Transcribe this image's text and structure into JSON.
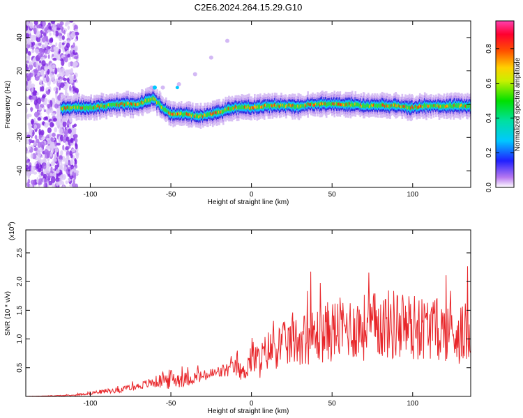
{
  "title": "C2E6.2024.264.15.29.G10",
  "chart_data": [
    {
      "type": "heatmap",
      "xlabel": "Height of straight line (km)",
      "ylabel": "Frequency (Hz)",
      "xlim": [
        -140,
        136
      ],
      "ylim": [
        -50,
        50
      ],
      "xticks": [
        -100,
        -50,
        0,
        50,
        100
      ],
      "yticks": [
        -40,
        -20,
        0,
        20,
        40
      ],
      "colorbar": {
        "label": "Normalized spectral amplitude",
        "range": [
          0,
          0.96
        ],
        "ticks": [
          "0.0",
          "0.2",
          "0.4",
          "0.6",
          "0.8"
        ]
      },
      "ridge": {
        "x": [
          -120,
          -110,
          -100,
          -90,
          -80,
          -70,
          -65,
          -60,
          -55,
          -50,
          -45,
          -40,
          -35,
          -30,
          -25,
          -20,
          -15,
          -10,
          -5,
          0,
          10,
          20,
          30,
          40,
          50,
          60,
          70,
          80,
          90,
          100,
          110,
          120,
          130,
          136
        ],
        "y": [
          -3,
          -2,
          -2,
          -1,
          0,
          0,
          2,
          3,
          -2,
          -6,
          -6,
          -6,
          -7,
          -7,
          -6,
          -5,
          -3,
          -2,
          -2,
          -2,
          -1,
          -1,
          -1,
          0,
          0,
          0,
          -1,
          -1,
          -1,
          -2,
          -1,
          -1,
          -1,
          -1
        ]
      },
      "arc": {
        "x": [
          -62,
          -55,
          -45,
          -35,
          -25,
          -15
        ],
        "y": [
          10,
          10,
          12,
          18,
          28,
          38
        ]
      }
    },
    {
      "type": "line",
      "xlabel": "Height of straight line (km)",
      "ylabel": "SNR (10 * v/v)",
      "y_multiplier": "(x10",
      "y_multiplier_exp": "4",
      "y_multiplier_close": ")",
      "xlim": [
        -140,
        136
      ],
      "ylim": [
        0,
        2.9
      ],
      "xticks": [
        -100,
        -50,
        0,
        50,
        100
      ],
      "yticks": [
        "0.5",
        "1.0",
        "1.5",
        "2.0",
        "2.5"
      ],
      "series": [
        {
          "color": "#e8262a",
          "envelope_x": [
            -140,
            -110,
            -100,
            -80,
            -70,
            -60,
            -50,
            -40,
            -30,
            -20,
            -10,
            -5,
            0,
            5,
            10,
            20,
            30,
            40,
            50,
            60,
            70,
            80,
            90,
            100,
            110,
            120,
            130,
            136
          ],
          "envelope_y": [
            0.0,
            0.02,
            0.06,
            0.12,
            0.18,
            0.25,
            0.3,
            0.3,
            0.35,
            0.42,
            0.5,
            0.4,
            0.7,
            0.6,
            0.8,
            0.9,
            1.0,
            1.05,
            1.15,
            1.2,
            1.2,
            1.25,
            1.25,
            1.2,
            1.2,
            1.15,
            1.1,
            1.1
          ],
          "spread_y": [
            0.0,
            0.01,
            0.03,
            0.05,
            0.06,
            0.1,
            0.18,
            0.12,
            0.1,
            0.12,
            0.15,
            0.15,
            0.35,
            0.3,
            0.35,
            0.4,
            0.45,
            0.5,
            0.55,
            0.55,
            0.6,
            0.6,
            0.65,
            0.6,
            0.55,
            0.55,
            0.55,
            0.5
          ]
        }
      ]
    }
  ]
}
